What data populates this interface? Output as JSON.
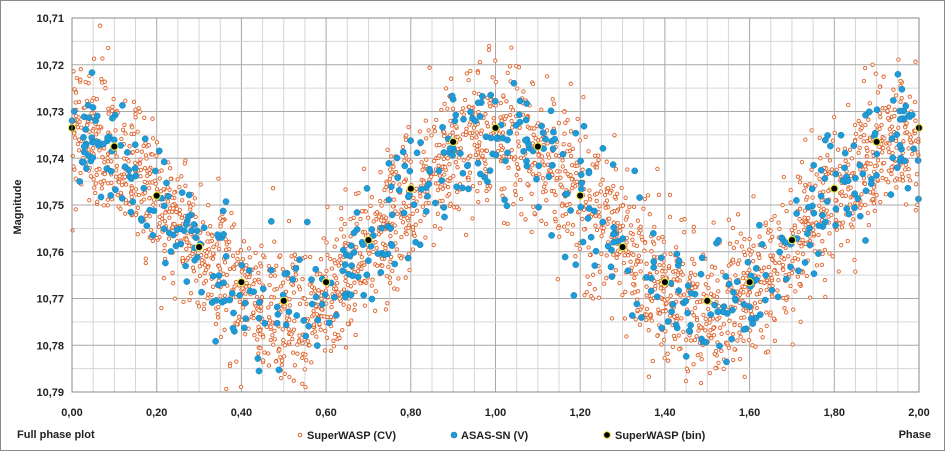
{
  "chart_data": {
    "type": "scatter",
    "footer_left": "Full phase plot",
    "xlabel": "Phase",
    "ylabel": "Magnitude",
    "xlim": [
      0,
      2
    ],
    "ylim": [
      10.71,
      10.79
    ],
    "y_reversed": true,
    "grid": true,
    "legend_position": "bottom",
    "x_ticks": [
      "0,00",
      "0,20",
      "0,40",
      "0,60",
      "0,80",
      "1,00",
      "1,20",
      "1,40",
      "1,60",
      "1,80",
      "2,00"
    ],
    "y_ticks": [
      "10,71",
      "10,72",
      "10,73",
      "10,74",
      "10,75",
      "10,76",
      "10,77",
      "10,78",
      "10,79"
    ],
    "series": [
      {
        "name": "SuperWASP (CV)",
        "color": "#e0622a",
        "marker": "open-circle-small",
        "model": {
          "mean": 10.7535,
          "amplitude": 0.0185,
          "phase_of_max_brightness": 0.0,
          "scatter_sd": 0.0075,
          "points_per_cycle": 1300
        }
      },
      {
        "name": "ASAS-SN (V)",
        "color": "#1f9bd7",
        "marker": "filled-circle",
        "model": {
          "mean": 10.7535,
          "amplitude": 0.0185,
          "phase_of_max_brightness": 0.0,
          "scatter_sd": 0.0065,
          "points_per_cycle": 260
        }
      },
      {
        "name": "SuperWASP (bin)",
        "color": "#000000",
        "marker": "filled-circle-yellow-edge",
        "points": [
          [
            0.0,
            10.7335
          ],
          [
            0.1,
            10.7375
          ],
          [
            0.2,
            10.748
          ],
          [
            0.3,
            10.759
          ],
          [
            0.4,
            10.7665
          ],
          [
            0.5,
            10.7705
          ],
          [
            0.6,
            10.7665
          ],
          [
            0.7,
            10.7575
          ],
          [
            0.8,
            10.7465
          ],
          [
            0.9,
            10.7365
          ],
          [
            1.0,
            10.7335
          ],
          [
            1.1,
            10.7375
          ],
          [
            1.2,
            10.748
          ],
          [
            1.3,
            10.759
          ],
          [
            1.4,
            10.7665
          ],
          [
            1.5,
            10.7705
          ],
          [
            1.6,
            10.7665
          ],
          [
            1.7,
            10.7575
          ],
          [
            1.8,
            10.7465
          ],
          [
            1.9,
            10.7365
          ],
          [
            2.0,
            10.7335
          ]
        ]
      }
    ]
  }
}
